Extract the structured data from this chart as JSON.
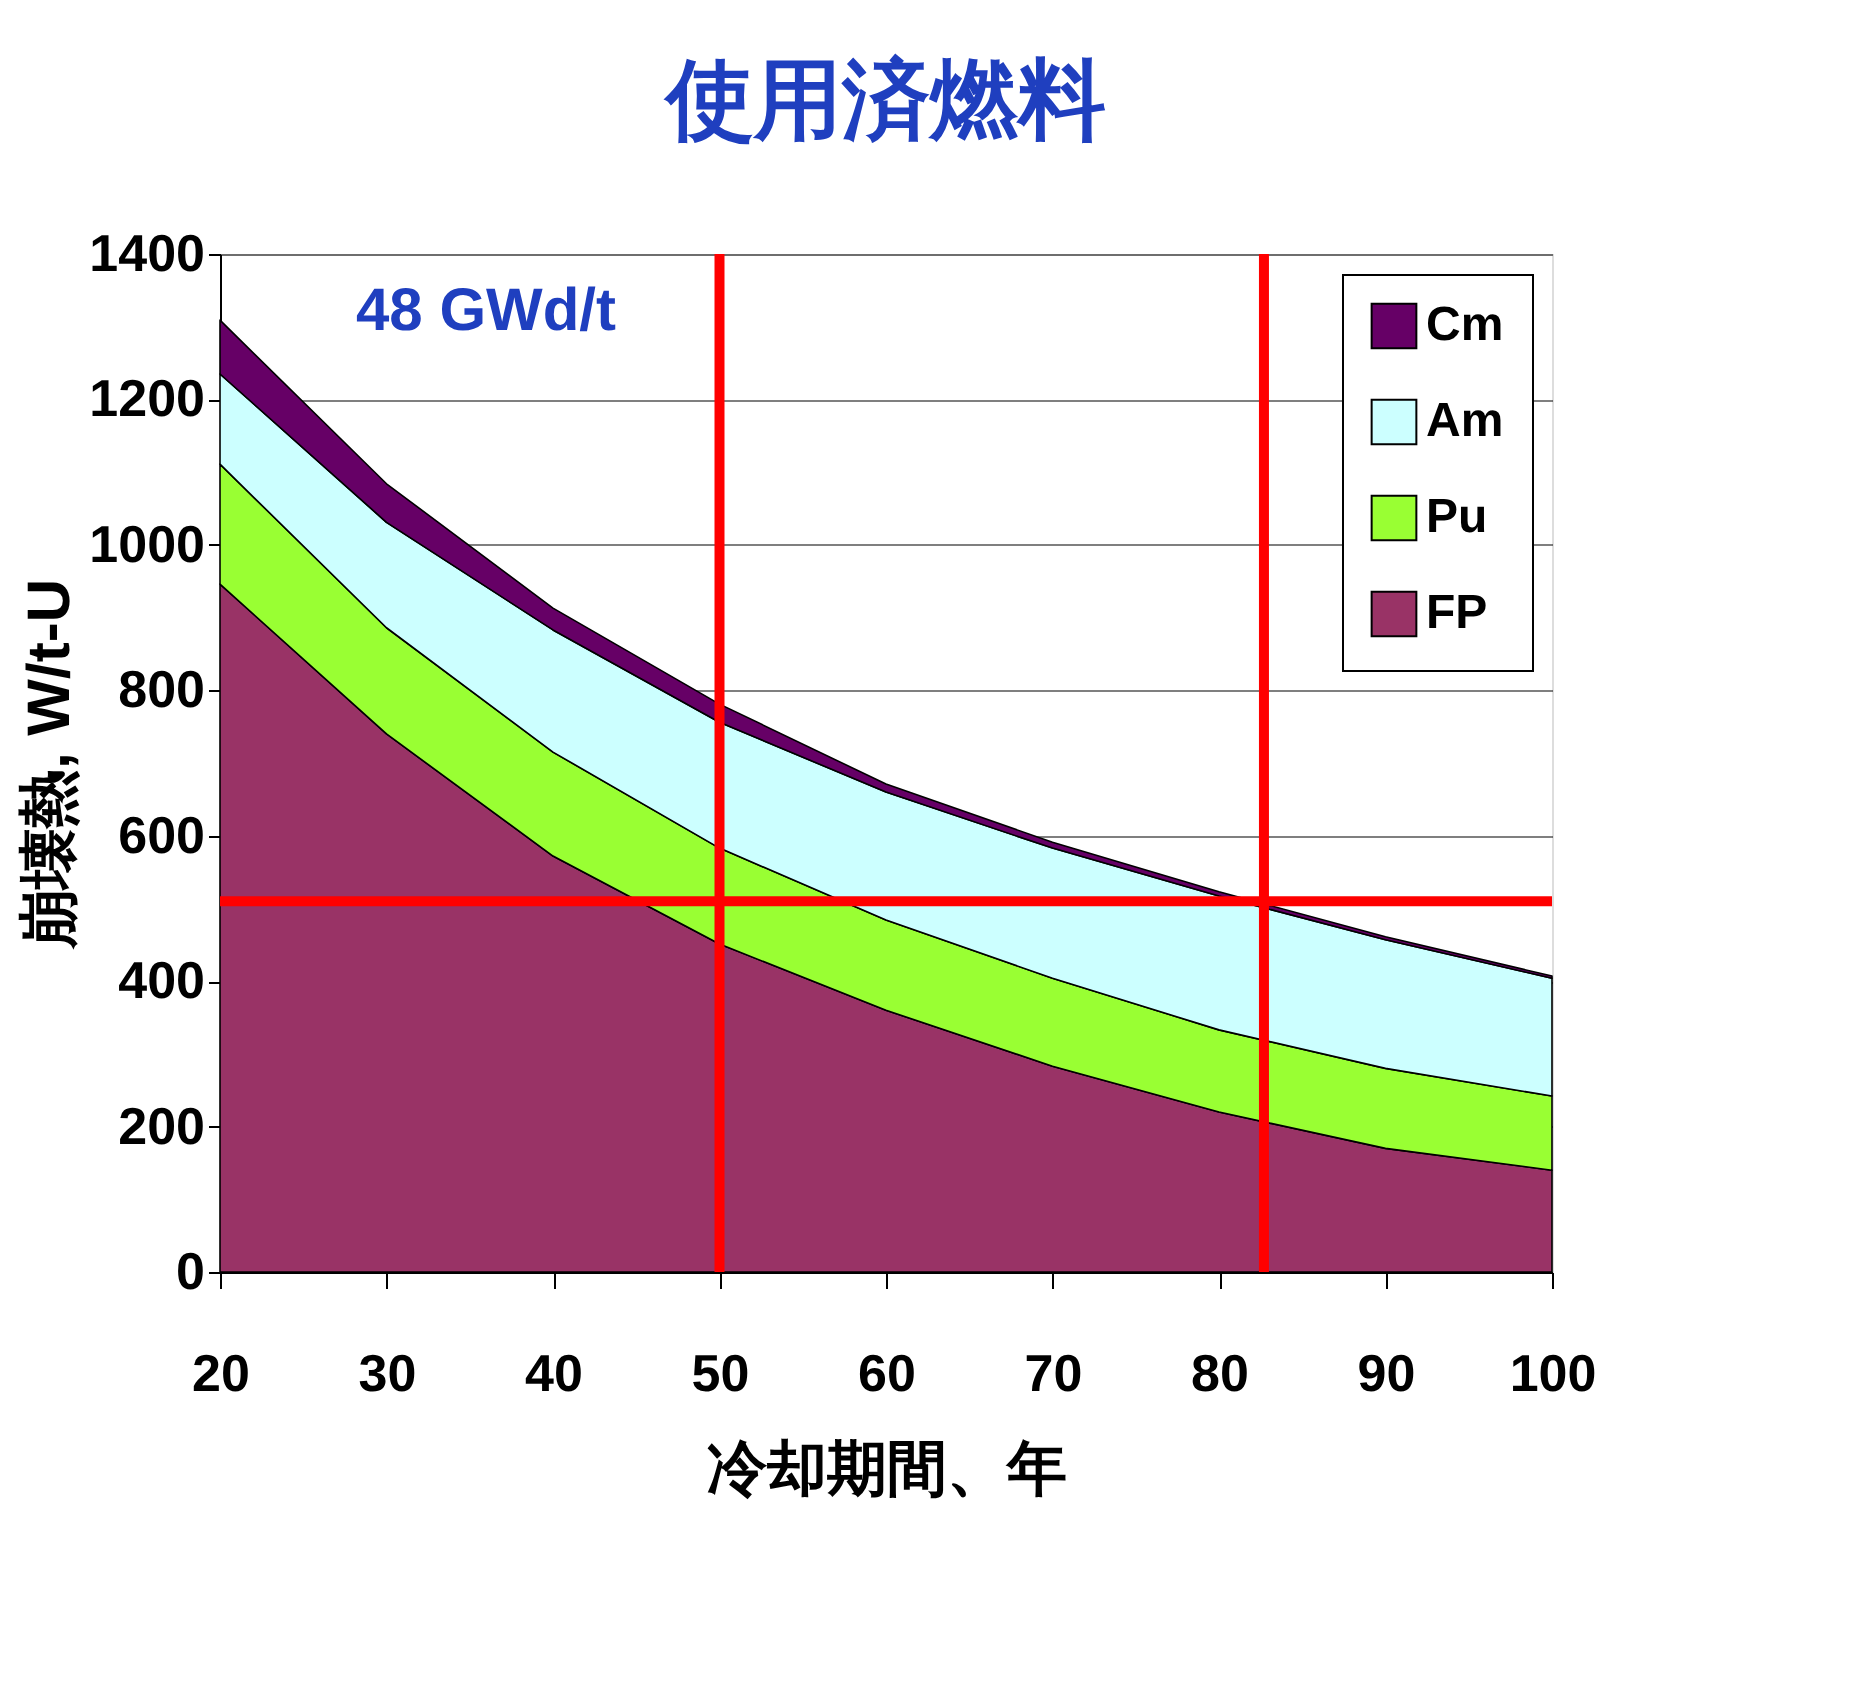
{
  "chart_data": {
    "type": "area",
    "stacked": true,
    "title": "使用済燃料",
    "xlabel": "冷却期間、年",
    "ylabel": "崩壊熱, W/t-U",
    "x": [
      20,
      30,
      40,
      50,
      60,
      70,
      80,
      90,
      100
    ],
    "series": [
      {
        "name": "FP",
        "color": "#993366",
        "values": [
          946,
          740,
          572,
          451,
          360,
          283,
          220,
          170,
          140
        ]
      },
      {
        "name": "Pu",
        "color": "#99ff33",
        "values": [
          165,
          146,
          143,
          132,
          124,
          121,
          113,
          110,
          102
        ]
      },
      {
        "name": "Am",
        "color": "#ccffff",
        "values": [
          124,
          145,
          168,
          173,
          176,
          179,
          184,
          177,
          162
        ]
      },
      {
        "name": "Cm",
        "color": "#660066",
        "values": [
          74,
          53,
          30,
          25,
          11,
          8,
          6,
          4,
          3
        ]
      }
    ],
    "xlim": [
      20,
      100
    ],
    "xticks": [
      20,
      30,
      40,
      50,
      60,
      70,
      80,
      90,
      100
    ],
    "ylim": [
      0,
      1400
    ],
    "yticks": [
      0,
      200,
      400,
      600,
      800,
      1000,
      1200,
      1400
    ],
    "grid": "y",
    "legend": "top right",
    "annotations": [
      "48 GWd/t"
    ],
    "ref_lines": [
      {
        "axis": "y",
        "value": 510,
        "color": "#ff0000"
      },
      {
        "axis": "x",
        "value": 50,
        "color": "#ff0000"
      },
      {
        "axis": "x",
        "value": 82.7,
        "color": "#ff0000"
      }
    ]
  }
}
